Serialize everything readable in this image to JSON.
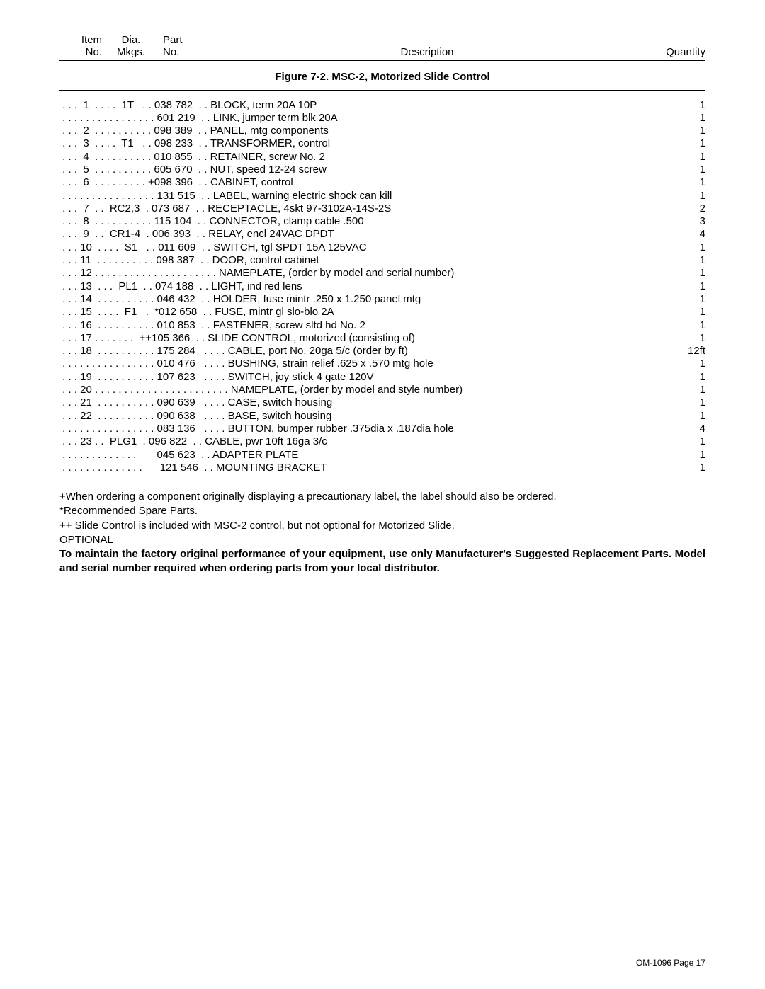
{
  "header": {
    "item_line1": "Item",
    "item_line2": "No.",
    "dia_line1": "Dia.",
    "dia_line2": "Mkgs.",
    "part_line1": "Part",
    "part_line2": "No.",
    "description": "Description",
    "quantity": "Quantity"
  },
  "figure_title": "Figure 7-2. MSC-2, Motorized Slide Control",
  "rows": [
    {
      "prefix": " . . .  1  . . . .  1T   . . 038 782  . . BLOCK, term 20A 10P",
      "qty": "1"
    },
    {
      "prefix": " . . . . . . . . . . . . . . . . 601 219  . . LINK, jumper term blk 20A",
      "qty": "1"
    },
    {
      "prefix": " . . .  2  . . . . . . . . . . 098 389  . . PANEL, mtg components",
      "qty": "1"
    },
    {
      "prefix": " . . .  3  . . . .  T1   . . 098 233  . . TRANSFORMER, control",
      "qty": "1"
    },
    {
      "prefix": " . . .  4  . . . . . . . . . . 010 855  . . RETAINER, screw No. 2",
      "qty": "1"
    },
    {
      "prefix": " . . .  5  . . . . . . . . . . 605 670  . . NUT, speed 12-24 screw",
      "qty": "1"
    },
    {
      "prefix": " . . .  6  . . . . . . . . . +098 396  . . CABINET, control",
      "qty": "1"
    },
    {
      "prefix": " . . . . . . . . . . . . . . . . 131 515  . . LABEL, warning electric shock can kill",
      "qty": "1"
    },
    {
      "prefix": " . . .  7  . .  RC2,3  . 073 687  . . RECEPTACLE, 4skt 97-3102A-14S-2S",
      "qty": "2"
    },
    {
      "prefix": " . . .  8  . . . . . . . . . . 115 104  . . CONNECTOR, clamp cable .500",
      "qty": "3"
    },
    {
      "prefix": " . . .  9  . .  CR1-4  . 006 393  . . RELAY, encl 24VAC DPDT",
      "qty": "4"
    },
    {
      "prefix": " . . . 10  . . . .  S1   . . 011 609  . . SWITCH, tgl SPDT 15A 125VAC",
      "qty": "1"
    },
    {
      "prefix": " . . . 11  . . . . . . . . . . 098 387  . . DOOR, control cabinet",
      "qty": "1"
    },
    {
      "prefix": " . . . 12 . . . . . . . . . . . . . . . . . . . . . NAMEPLATE, (order by model and serial number)",
      "qty": "1"
    },
    {
      "prefix": " . . . 13  . . .  PL1  . . 074 188  . . LIGHT, ind red lens",
      "qty": "1"
    },
    {
      "prefix": " . . . 14  . . . . . . . . . . 046 432  . . HOLDER, fuse mintr .250 x 1.250 panel mtg",
      "qty": "1"
    },
    {
      "prefix": " . . . 15  . . . .  F1   .  *012 658  . . FUSE, mintr gl slo-blo 2A",
      "qty": "1"
    },
    {
      "prefix": " . . . 16  . . . . . . . . . . 010 853  . . FASTENER, screw sltd hd No. 2",
      "qty": "1"
    },
    {
      "prefix": " . . . 17 . . . . . . .  ++105 366  . . SLIDE CONTROL, motorized (consisting of)",
      "qty": "1"
    },
    {
      "prefix": " . . . 18  . . . . . . . . . . 175 284   . . . . CABLE, port No. 20ga 5/c (order by ft)",
      "qty": "12ft"
    },
    {
      "prefix": " . . . . . . . . . . . . . . . . 010 476   . . . . BUSHING, strain relief .625 x .570 mtg hole",
      "qty": "1"
    },
    {
      "prefix": " . . . 19  . . . . . . . . . . 107 623   . . . . SWITCH, joy stick 4 gate 120V",
      "qty": "1"
    },
    {
      "prefix": " . . . 20 . . . . . . . . . . . . . . . . . . . . . . . NAMEPLATE, (order by model and style number)",
      "qty": "1"
    },
    {
      "prefix": " . . . 21  . . . . . . . . . . 090 639   . . . . CASE, switch housing",
      "qty": "1"
    },
    {
      "prefix": " . . . 22  . . . . . . . . . . 090 638   . . . . BASE, switch housing",
      "qty": "1"
    },
    {
      "prefix": " . . . . . . . . . . . . . . . . 083 136   . . . . BUTTON, bumper rubber .375dia x .187dia hole",
      "qty": "4"
    },
    {
      "prefix": " . . . 23 . .  PLG1  . 096 822  . . CABLE, pwr 10ft 16ga 3/c",
      "qty": "1"
    },
    {
      "prefix": " . . . . . . . . . . . . .       045 623  . . ADAPTER PLATE",
      "qty": "1"
    },
    {
      "prefix": " . . . . . . . . . . . . . .      121 546  . . MOUNTING BRACKET",
      "qty": "1"
    }
  ],
  "notes": {
    "n1": "+When ordering a component originally displaying a precautionary label, the label should also be ordered.",
    "n2": "*Recommended Spare Parts.",
    "n3": "++ Slide Control is included with MSC-2 control, but not optional for Motorized Slide.",
    "n4": " OPTIONAL",
    "bold": "To maintain the factory original performance of your equipment, use only Manufacturer's Suggested Replacement Parts. Model and serial number required when ordering parts from your local distributor."
  },
  "footer": "OM-1096 Page 17"
}
